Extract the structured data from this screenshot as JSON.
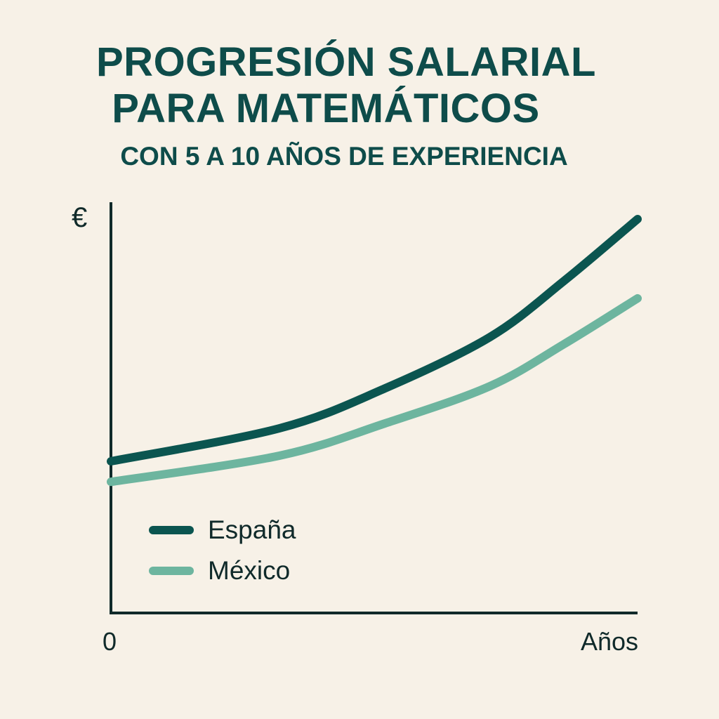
{
  "header": {
    "title_line1": "PROGRESIÓN SALARIAL",
    "title_line2": "PARA MATEMÁTICOS",
    "subtitle": "CON 5 A 10 AÑOS DE EXPERIENCIA"
  },
  "colors": {
    "background": "#f7f1e7",
    "title": "#0e4c4a",
    "axis": "#102a2a",
    "espana": "#0b5550",
    "mexico": "#6db59f"
  },
  "axes": {
    "y_label": "€",
    "x_origin_label": "0",
    "x_end_label": "Años"
  },
  "legend": {
    "items": [
      {
        "label": "España",
        "color": "#0b5550"
      },
      {
        "label": "México",
        "color": "#6db59f"
      }
    ]
  },
  "chart_data": {
    "type": "line",
    "title": "PROGRESIÓN SALARIAL PARA MATEMÁTICOS",
    "subtitle": "CON 5 A 10 AÑOS DE EXPERIENCIA",
    "xlabel": "Años",
    "ylabel": "€",
    "x_tick_labels": [
      "0"
    ],
    "x": [
      0,
      32,
      52,
      72,
      86,
      100
    ],
    "xlim": [
      0,
      100
    ],
    "ylim": [
      0,
      100
    ],
    "units_note": "No numeric ticks shown; values are relative (0-100 scale estimated from pixel positions)",
    "grid": false,
    "legend_position": "lower-left inside plot",
    "series": [
      {
        "name": "España",
        "color": "#0b5550",
        "values": [
          37.7,
          45.9,
          55.8,
          68.6,
          82.5,
          97.9
        ]
      },
      {
        "name": "México",
        "color": "#6db59f",
        "values": [
          32.6,
          39.1,
          47.1,
          56.4,
          66.8,
          78.2
        ]
      }
    ]
  }
}
